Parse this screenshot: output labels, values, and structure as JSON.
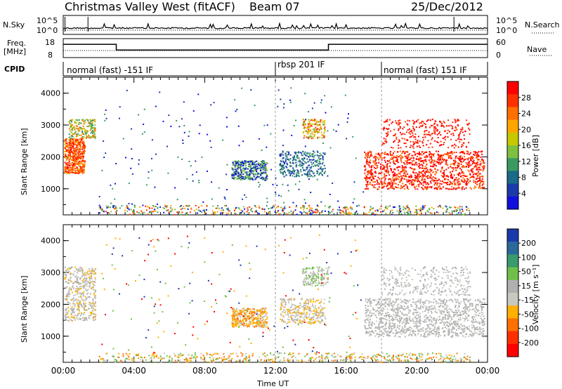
{
  "header": {
    "station": "Christmas Valley West (fitACF)",
    "beam": "Beam 07",
    "date": "25/Dec/2012"
  },
  "left_labels": {
    "nsky": "N.Sky",
    "nsky_hi": "10^5",
    "nsky_lo": "10^0",
    "freq": "Freq.",
    "freq_unit": "[MHz]",
    "freq_hi": "18",
    "freq_lo": "8",
    "cpid": "CPID"
  },
  "right_labels": {
    "nsearch": "N.Search",
    "nsearch_hi": "10^5",
    "nsearch_lo": "10^0",
    "nave": "Nave",
    "nave_hi": "60",
    "nave_lo": "0"
  },
  "modes": [
    {
      "label": "normal (fast) -151 IF",
      "start": 0
    },
    {
      "label": "rbsp 201 IF",
      "start": 12
    },
    {
      "label": "normal (fast) 151 IF",
      "start": 18
    }
  ],
  "power_panel": {
    "ylabel": "Slant Range [km]",
    "colorbar_label": "Power [dB]",
    "colorbar_ticks": [
      "28",
      "24",
      "20",
      "16",
      "12",
      "8",
      "4"
    ],
    "colorbar_colors": [
      "#ff0000",
      "#ff3000",
      "#ff7000",
      "#ffa500",
      "#c8c800",
      "#7ec040",
      "#3a9a60",
      "#1a6a8a",
      "#1a3aaa",
      "#1010dd"
    ]
  },
  "velocity_panel": {
    "ylabel": "Slant Range [km]",
    "colorbar_label": "Velocity [m s⁻¹]",
    "colorbar_ticks": [
      "200",
      "100",
      "50",
      "15",
      "-15",
      "-50",
      "-100",
      "-200"
    ],
    "colorbar_colors": [
      "#1a3aaa",
      "#2a6a9a",
      "#3a9a70",
      "#6fc04a",
      "#b0b0b0",
      "#c8c8c0",
      "#ffb000",
      "#ff7000",
      "#ff3000",
      "#ff0000"
    ]
  },
  "x_axis": {
    "label": "Time UT",
    "ticks": [
      "00:00",
      "04:00",
      "08:00",
      "12:00",
      "16:00",
      "20:00",
      "00:00"
    ]
  },
  "range_ticks": [
    "4000",
    "3000",
    "2000",
    "1000"
  ],
  "chart_data": [
    {
      "type": "line",
      "name": "N.Sky / N.Search",
      "x_range": [
        0,
        24
      ],
      "ylim": [
        1,
        100000
      ],
      "log_y": true
    },
    {
      "type": "line",
      "name": "Frequency",
      "x": [
        0,
        3,
        3,
        15,
        15,
        24
      ],
      "y": [
        15,
        15,
        12,
        12,
        15,
        15
      ],
      "ylim": [
        8,
        18
      ]
    },
    {
      "type": "heatmap",
      "quantity": "Power [dB]",
      "x_range": [
        0,
        24
      ],
      "ylim": [
        180,
        4500
      ],
      "clim": [
        0,
        30
      ]
    },
    {
      "type": "heatmap",
      "quantity": "Velocity [m s^-1]",
      "x_range": [
        0,
        24
      ],
      "ylim": [
        180,
        4500
      ],
      "clim": [
        -200,
        200
      ]
    }
  ]
}
